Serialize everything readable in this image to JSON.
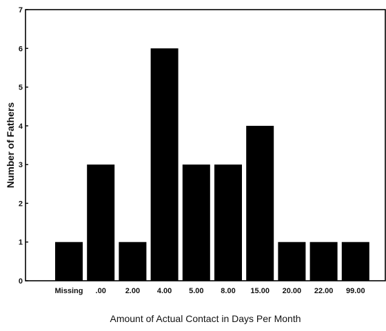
{
  "chart_data": {
    "type": "bar",
    "title": "",
    "xlabel": "Amount of Actual Contact in Days Per Month",
    "ylabel": "Number of Fathers",
    "categories": [
      "Missing",
      ".00",
      "2.00",
      "4.00",
      "5.00",
      "8.00",
      "15.00",
      "20.00",
      "22.00",
      "99.00"
    ],
    "values": [
      1,
      3,
      1,
      6,
      3,
      3,
      4,
      1,
      1,
      1
    ],
    "ylim": [
      0,
      7
    ],
    "yticks": [
      "0",
      "1",
      "2",
      "3",
      "4",
      "5",
      "6",
      "7"
    ],
    "grid": false,
    "legend": "none",
    "bar_color": "#000000"
  }
}
